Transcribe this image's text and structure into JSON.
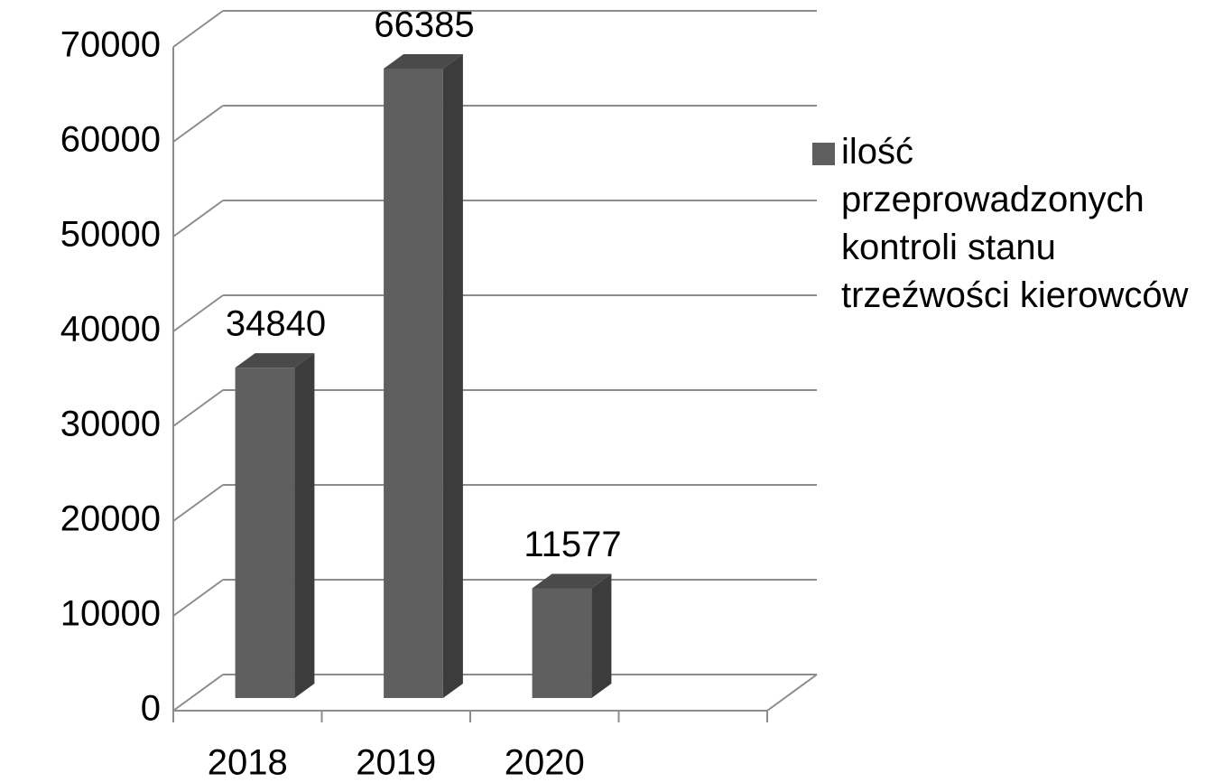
{
  "chart_data": {
    "type": "bar3d",
    "categories": [
      "2018",
      "2019",
      "2020",
      null
    ],
    "series": [
      {
        "name": "ilość przeprowadzonych kontroli stanu trzeźwości kierowców",
        "color": "#5f5f5f",
        "values": [
          34840,
          66385,
          11577,
          null
        ]
      }
    ],
    "ylim": [
      0,
      70000
    ],
    "yticks": [
      0,
      10000,
      20000,
      30000,
      40000,
      50000,
      60000,
      70000
    ],
    "grid": true,
    "legend": "right"
  }
}
